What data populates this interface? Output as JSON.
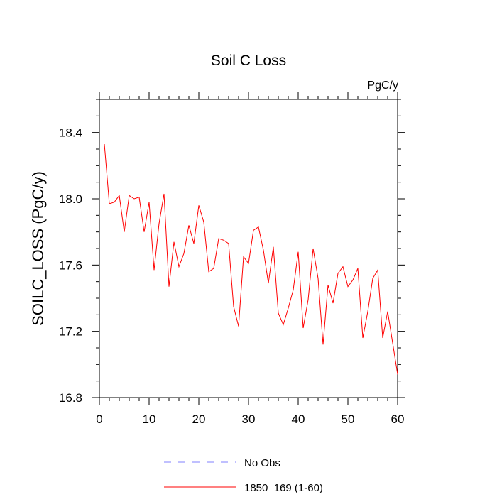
{
  "chart_data": {
    "type": "line",
    "title": "Soil C Loss",
    "units_label": "PgC/y",
    "xlabel": "",
    "ylabel": "SOILC_LOSS  (PgC/y)",
    "xlim": [
      0,
      60
    ],
    "ylim": [
      16.8,
      18.6
    ],
    "x_ticks": [
      0,
      10,
      20,
      30,
      40,
      50,
      60
    ],
    "x_tick_labels": [
      "0",
      "10",
      "20",
      "30",
      "40",
      "50",
      "60"
    ],
    "y_ticks": [
      16.8,
      17.2,
      17.6,
      18.0,
      18.4
    ],
    "y_tick_labels": [
      "16.8",
      "17.2",
      "17.6",
      "18.0",
      "18.4"
    ],
    "grid": false,
    "legend_position": "bottom-center",
    "series": [
      {
        "name": "No Obs",
        "color": "#8080ff",
        "style": "dashed",
        "x": [],
        "values": []
      },
      {
        "name": "1850_169 (1-60)",
        "color": "#ff0000",
        "style": "solid",
        "x": [
          1,
          2,
          3,
          4,
          5,
          6,
          7,
          8,
          9,
          10,
          11,
          12,
          13,
          14,
          15,
          16,
          17,
          18,
          19,
          20,
          21,
          22,
          23,
          24,
          25,
          26,
          27,
          28,
          29,
          30,
          31,
          32,
          33,
          34,
          35,
          36,
          37,
          38,
          39,
          40,
          41,
          42,
          43,
          44,
          45,
          46,
          47,
          48,
          49,
          50,
          51,
          52,
          53,
          54,
          55,
          56,
          57,
          58,
          59,
          60
        ],
        "values": [
          18.33,
          17.97,
          17.98,
          18.02,
          17.8,
          18.02,
          18.0,
          18.01,
          17.8,
          17.98,
          17.57,
          17.85,
          18.03,
          17.47,
          17.74,
          17.59,
          17.67,
          17.84,
          17.73,
          17.96,
          17.86,
          17.56,
          17.58,
          17.76,
          17.75,
          17.73,
          17.35,
          17.23,
          17.65,
          17.61,
          17.81,
          17.83,
          17.69,
          17.49,
          17.71,
          17.31,
          17.24,
          17.34,
          17.45,
          17.68,
          17.22,
          17.39,
          17.7,
          17.52,
          17.12,
          17.48,
          17.37,
          17.55,
          17.59,
          17.47,
          17.51,
          17.58,
          17.16,
          17.32,
          17.52,
          17.57,
          17.16,
          17.32,
          17.13,
          16.94
        ]
      }
    ]
  }
}
